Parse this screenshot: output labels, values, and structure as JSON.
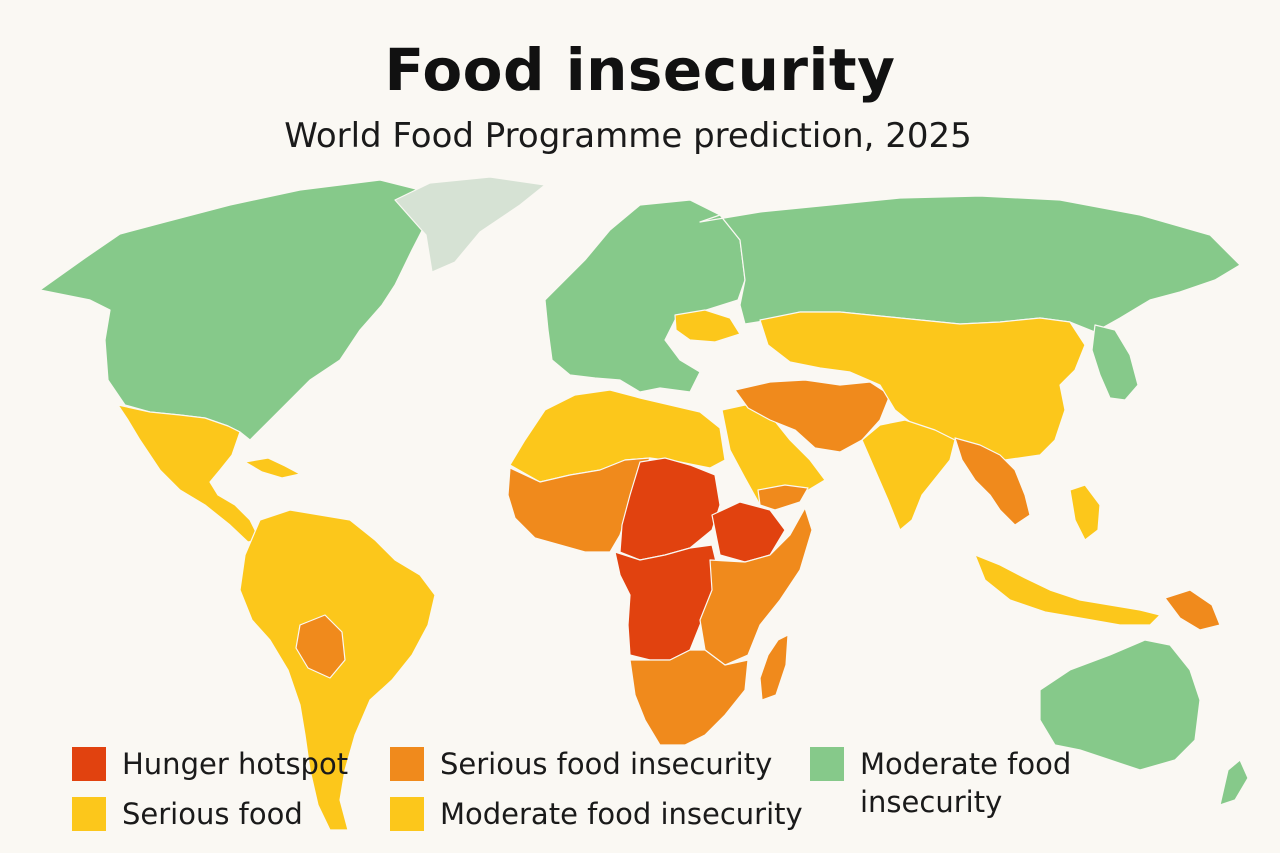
{
  "title": "Food insecurity",
  "subtitle": "World Food Programme prediction, 2025",
  "colors": {
    "hunger_hotspot": "#e1420f",
    "serious": "#f08a1c",
    "serious_yellow": "#fcc71b",
    "moderate_yellow": "#fcc71b",
    "moderate_green": "#86c98a",
    "no_data": "#d6e2d4",
    "ocean": "#faf8f3"
  },
  "legend": [
    {
      "label": "Hunger hotspot",
      "color": "#e1420f"
    },
    {
      "label": "Serious food insecurity",
      "color": "#f08a1c"
    },
    {
      "label": "Moderate food insecurity",
      "color": "#86c98a"
    },
    {
      "label": "Serious food",
      "color": "#fcc71b"
    },
    {
      "label": "Moderate food insecurity",
      "color": "#fcc71b"
    }
  ],
  "map": {
    "regions": [
      {
        "name": "north-america",
        "category": "moderate_green"
      },
      {
        "name": "greenland",
        "category": "no_data"
      },
      {
        "name": "mexico-central-america",
        "category": "serious_yellow"
      },
      {
        "name": "caribbean",
        "category": "serious_yellow"
      },
      {
        "name": "south-america",
        "category": "serious_yellow"
      },
      {
        "name": "bolivia",
        "category": "serious"
      },
      {
        "name": "europe",
        "category": "moderate_green"
      },
      {
        "name": "russia",
        "category": "moderate_green"
      },
      {
        "name": "ukraine",
        "category": "serious_yellow"
      },
      {
        "name": "north-africa",
        "category": "serious_yellow"
      },
      {
        "name": "west-africa",
        "category": "serious"
      },
      {
        "name": "sahel-sudan",
        "category": "hunger_hotspot"
      },
      {
        "name": "central-africa",
        "category": "hunger_hotspot"
      },
      {
        "name": "ethiopia",
        "category": "hunger_hotspot"
      },
      {
        "name": "east-africa",
        "category": "serious"
      },
      {
        "name": "southern-africa",
        "category": "serious"
      },
      {
        "name": "madagascar",
        "category": "serious"
      },
      {
        "name": "arabia",
        "category": "serious_yellow"
      },
      {
        "name": "yemen",
        "category": "serious"
      },
      {
        "name": "iran-afghanistan-pakistan",
        "category": "serious"
      },
      {
        "name": "central-asia-china",
        "category": "serious_yellow"
      },
      {
        "name": "india",
        "category": "serious_yellow"
      },
      {
        "name": "myanmar-indochina",
        "category": "serious"
      },
      {
        "name": "indonesia",
        "category": "serious_yellow"
      },
      {
        "name": "papua-new-guinea",
        "category": "serious"
      },
      {
        "name": "japan-korea",
        "category": "moderate_green"
      },
      {
        "name": "australia",
        "category": "moderate_green"
      },
      {
        "name": "new-zealand",
        "category": "moderate_green"
      }
    ]
  }
}
